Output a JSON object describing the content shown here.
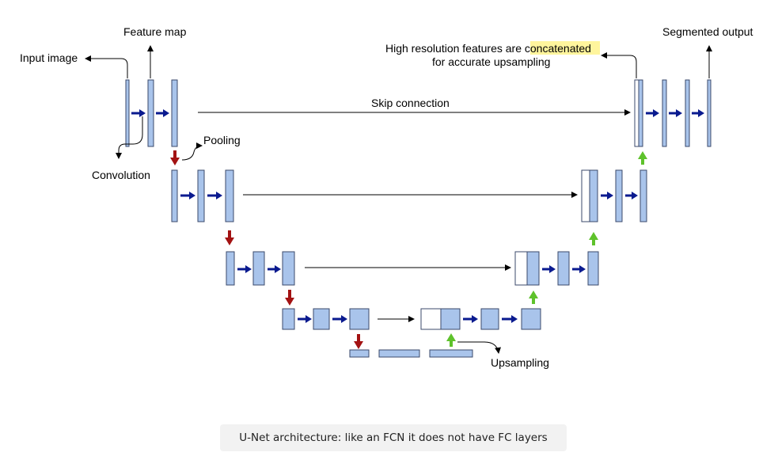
{
  "labels": {
    "input_image": "Input image",
    "feature_map": "Feature map",
    "convolution": "Convolution",
    "pooling": "Pooling",
    "skip_connection": "Skip connection",
    "concat_line1_prefix": "High resolution features are ",
    "concat_line1_highlight": "concatenated",
    "concat_line2": "for accurate upsampling",
    "segmented_output": "Segmented output",
    "upsampling": "Upsampling"
  },
  "caption": "U-Net architecture: like an FCN it does not have FC layers",
  "colors": {
    "block_fill": "#a9c4eb",
    "block_stroke": "#3b4a6b",
    "conv_arrow": "#0a1a8f",
    "pool_arrow": "#a31212",
    "up_arrow": "#5ec22b",
    "highlight": "#fff59d"
  }
}
